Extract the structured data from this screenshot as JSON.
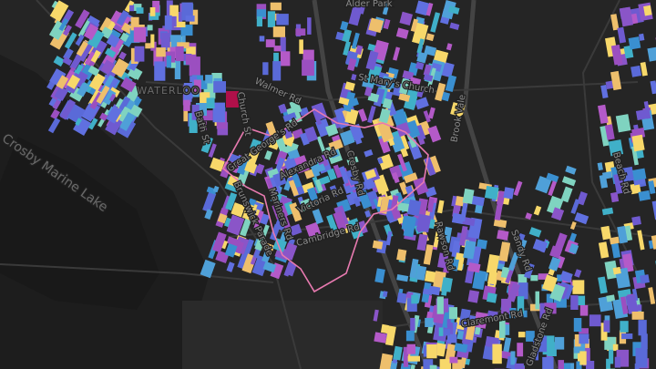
{
  "map": {
    "labels": [
      "Alder Park",
      "WATERLOO",
      "Walmer Rd",
      "Church St",
      "Bath St",
      "Great George's Rd",
      "Alexandra Rd",
      "Crosby Rd",
      "Victoria Rd",
      "Mariners Rd",
      "Brunswick Parade",
      "Cambridge Rd",
      "St Mary's Church",
      "Brook Vale",
      "Beach Rd",
      "Crosby Marine Lake",
      "Rawson Rd",
      "Sandy Rd",
      "Claremont Rd",
      "Gladstone Rd"
    ]
  }
}
